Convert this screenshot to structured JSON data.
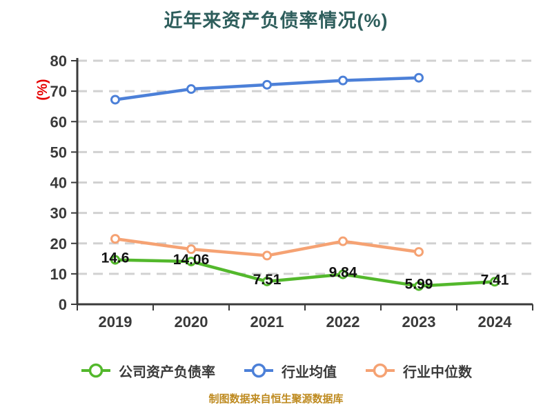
{
  "title": "近年来资产负债率情况(%)",
  "ylabel": "(%)",
  "caption": "制图数据来自恒生聚源数据库",
  "colors": {
    "title": "#2E5E5C",
    "ylabel": "#E60000",
    "caption": "#BE8A1F",
    "axis": "#3A3A3A",
    "grid": "#D1D1D1",
    "tick_text": "#3A3A3A",
    "data_label": "#121212",
    "marker_fill": "#FFFFFF"
  },
  "chart_data": {
    "type": "line",
    "title": "近年来资产负债率情况(%)",
    "ylabel": "(%)",
    "categories": [
      "2019",
      "2020",
      "2021",
      "2022",
      "2023",
      "2024"
    ],
    "ylim": [
      0,
      80
    ],
    "ytick_step": 10,
    "yticks": [
      0,
      10,
      20,
      30,
      40,
      50,
      60,
      70,
      80
    ],
    "grid": "horizontal-dashed",
    "legend_position": "bottom",
    "series": [
      {
        "name": "公司资产负债率",
        "color": "#53B82C",
        "values": [
          14.6,
          14.06,
          7.51,
          9.84,
          5.99,
          7.41
        ],
        "labels": [
          "14.6",
          "14.06",
          "7.51",
          "9.84",
          "5.99",
          "7.41"
        ]
      },
      {
        "name": "行业均值",
        "color": "#4C80D8",
        "values": [
          67.2,
          70.7,
          72.1,
          73.5,
          74.4
        ],
        "labels": null
      },
      {
        "name": "行业中位数",
        "color": "#F5A273",
        "values": [
          21.5,
          18.1,
          16.0,
          20.7,
          17.2
        ],
        "labels": null
      }
    ]
  }
}
